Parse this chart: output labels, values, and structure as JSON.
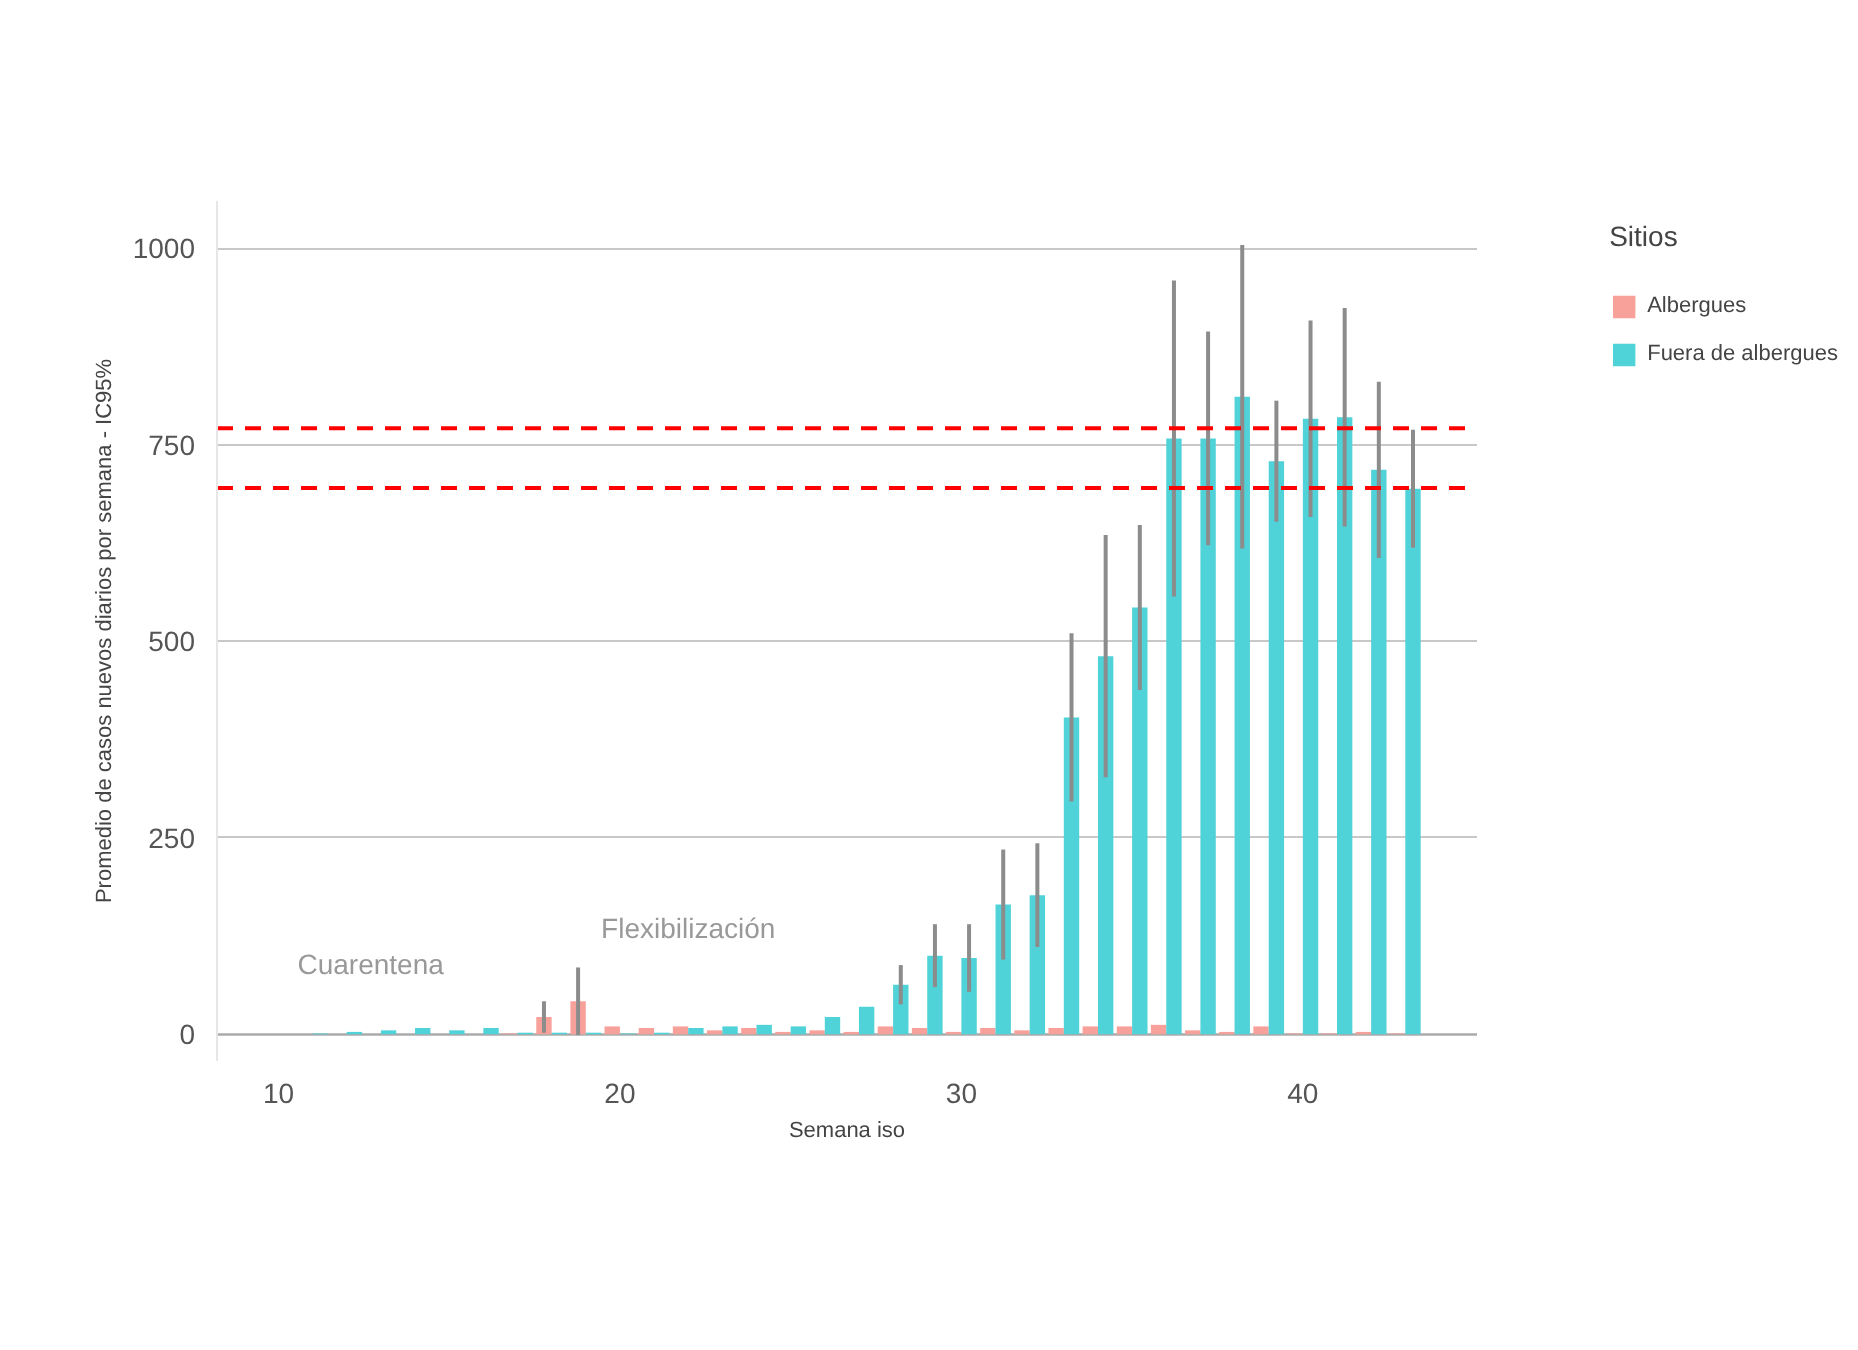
{
  "chart_data": {
    "type": "bar",
    "xlabel": "Semana iso",
    "ylabel": "Promedio de casos nuevos diarios por semana - IC95%",
    "legend_title": "Sitios",
    "x": [
      10,
      11,
      12,
      13,
      14,
      15,
      16,
      17,
      18,
      19,
      20,
      21,
      22,
      23,
      24,
      25,
      26,
      27,
      28,
      29,
      30,
      31,
      32,
      33,
      34,
      35,
      36,
      37,
      38,
      39,
      40,
      41,
      42,
      43
    ],
    "series": [
      {
        "name": "Albergues",
        "color": "#f8a19a",
        "values": [
          0,
          0,
          0,
          0,
          0,
          0,
          0,
          1,
          22,
          42,
          10,
          8,
          10,
          5,
          8,
          3,
          5,
          3,
          10,
          8,
          3,
          8,
          5,
          8,
          10,
          10,
          12,
          5,
          3,
          10,
          1,
          1,
          3,
          1
        ],
        "errors": [
          null,
          null,
          null,
          null,
          null,
          null,
          null,
          null,
          20,
          43,
          null,
          null,
          null,
          null,
          null,
          null,
          null,
          null,
          null,
          null,
          null,
          null,
          null,
          null,
          null,
          null,
          null,
          null,
          null,
          null,
          null,
          null,
          null,
          null
        ]
      },
      {
        "name": "Fuera de albergues",
        "color": "#4fd2d8",
        "values": [
          0,
          1,
          3,
          5,
          8,
          5,
          8,
          2,
          2,
          2,
          1,
          2,
          8,
          10,
          12,
          10,
          22,
          35,
          63,
          100,
          97,
          165,
          177,
          403,
          481,
          543,
          758,
          758,
          811,
          729,
          783,
          785,
          718,
          694
        ],
        "errors": [
          null,
          null,
          null,
          null,
          null,
          null,
          null,
          null,
          null,
          null,
          null,
          null,
          null,
          null,
          null,
          null,
          null,
          null,
          25,
          40,
          43,
          70,
          66,
          107,
          154,
          105,
          201,
          136,
          193,
          77,
          125,
          139,
          112,
          75
        ]
      }
    ],
    "xlim": [
      8.2,
      45.1
    ],
    "xticks": [
      10,
      20,
      30,
      40
    ],
    "ylim": [
      -34,
      1060
    ],
    "yticks": [
      0,
      250,
      500,
      750,
      1000
    ],
    "ref_lines": [
      {
        "axis": "y",
        "value": 771,
        "color": "#ff0000",
        "line_style": "dashed"
      },
      {
        "axis": "y",
        "value": 695,
        "color": "#ff0000",
        "line_style": "dashed"
      }
    ],
    "annotations": [
      "Cuarentena",
      "Flexibilización"
    ],
    "grid": "y",
    "legend": "right"
  }
}
